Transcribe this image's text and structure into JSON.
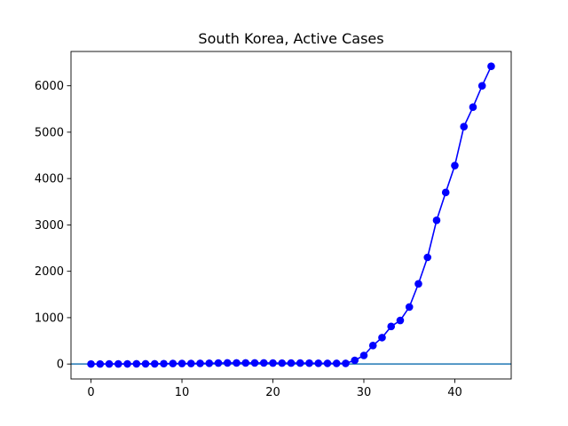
{
  "chart_data": {
    "type": "line",
    "title": "South Korea, Active Cases",
    "xlabel": "",
    "ylabel": "",
    "xlim": [
      -2.2,
      46.2
    ],
    "ylim": [
      -322,
      6740
    ],
    "xticks": [
      0,
      10,
      20,
      30,
      40
    ],
    "yticks": [
      0,
      1000,
      2000,
      3000,
      4000,
      5000,
      6000
    ],
    "grid": false,
    "series": [
      {
        "color": "#0000ff",
        "marker": "circle",
        "x": [
          0,
          1,
          2,
          3,
          4,
          5,
          6,
          7,
          8,
          9,
          10,
          11,
          12,
          13,
          14,
          15,
          16,
          17,
          18,
          19,
          20,
          21,
          22,
          23,
          24,
          25,
          26,
          27,
          28,
          29,
          30,
          31,
          32,
          33,
          34,
          35,
          36,
          37,
          38,
          39,
          40,
          41,
          42,
          43,
          44
        ],
        "y": [
          1,
          1,
          2,
          2,
          3,
          4,
          4,
          4,
          8,
          11,
          12,
          12,
          14,
          16,
          22,
          24,
          24,
          24,
          24,
          24,
          22,
          20,
          21,
          21,
          19,
          16,
          15,
          14,
          14,
          80,
          185,
          400,
          570,
          810,
          940,
          1230,
          1730,
          2300,
          3100,
          3700,
          4280,
          5120,
          5540,
          6000,
          6420
        ]
      }
    ],
    "hline": {
      "y": 0,
      "color": "#1f77b4"
    }
  }
}
